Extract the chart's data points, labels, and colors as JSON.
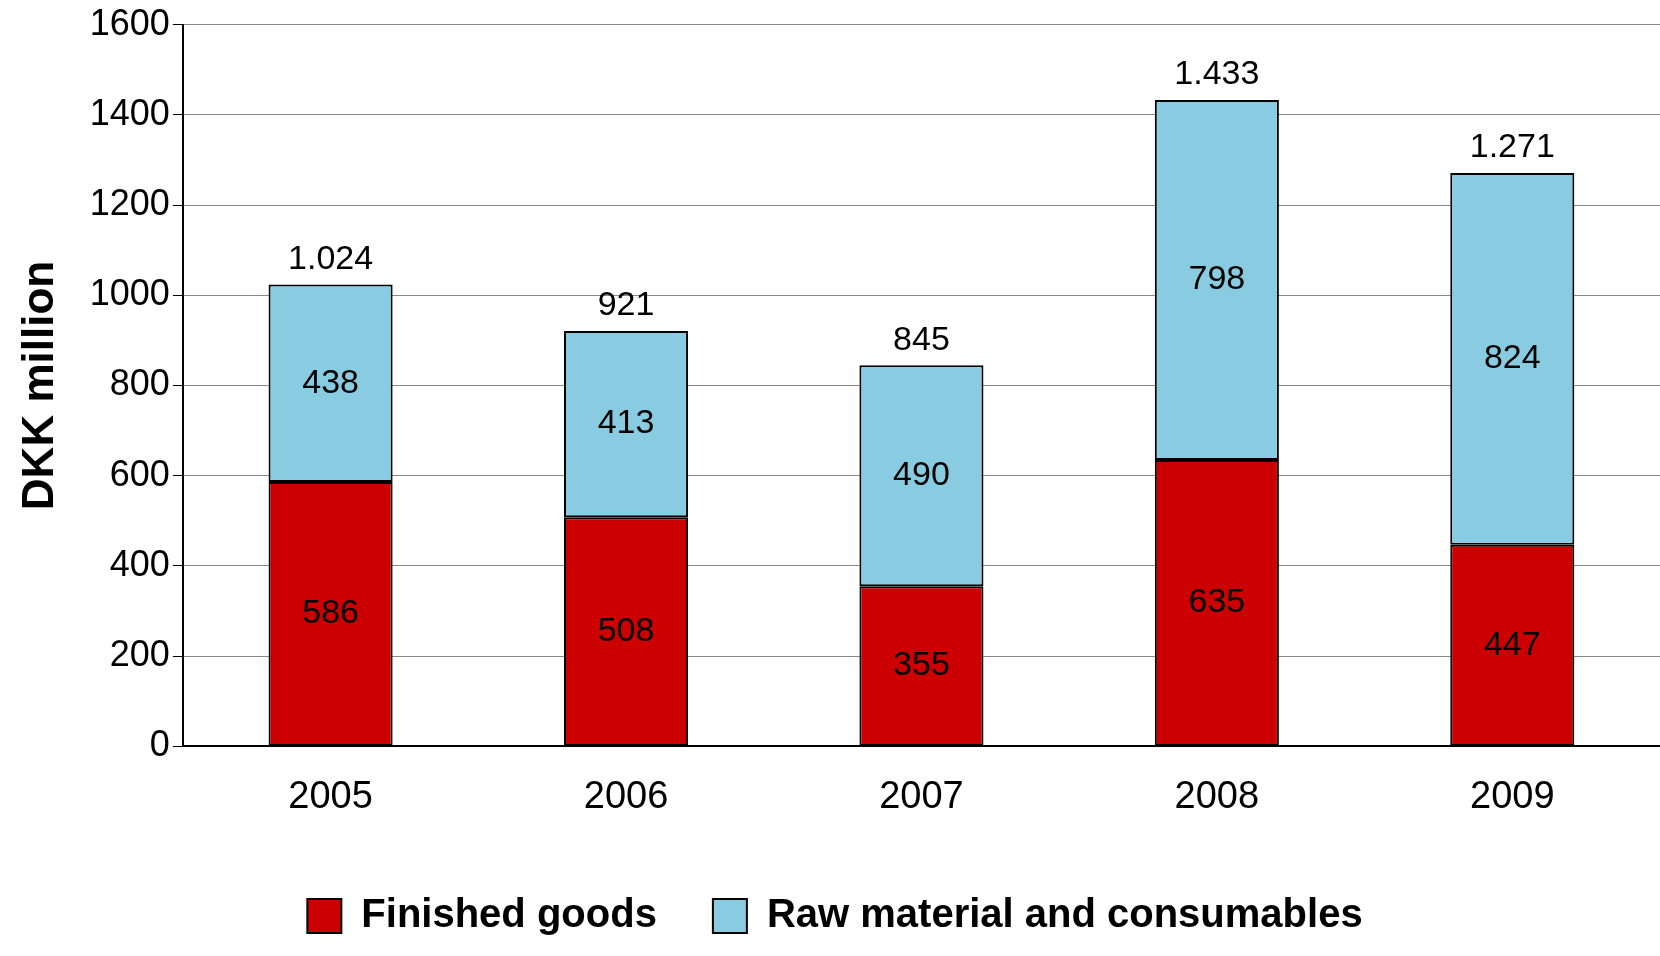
{
  "chart_data": {
    "type": "bar",
    "stacked": true,
    "ylabel": "DKK million",
    "categories": [
      "2005",
      "2006",
      "2007",
      "2008",
      "2009"
    ],
    "series": [
      {
        "name": "Finished goods",
        "color": "#cc0000",
        "values": [
          586,
          508,
          355,
          635,
          447
        ]
      },
      {
        "name": "Raw material and consumables",
        "color": "#89cce2",
        "values": [
          438,
          413,
          490,
          798,
          824
        ]
      }
    ],
    "totals": [
      "1.024",
      "921",
      "845",
      "1.433",
      "1.271"
    ],
    "data_labels": true,
    "ylim": [
      0,
      1600
    ],
    "yticks": [
      0,
      200,
      400,
      600,
      800,
      1000,
      1200,
      1400,
      1600
    ],
    "grid": "y",
    "legend": "bottom"
  }
}
